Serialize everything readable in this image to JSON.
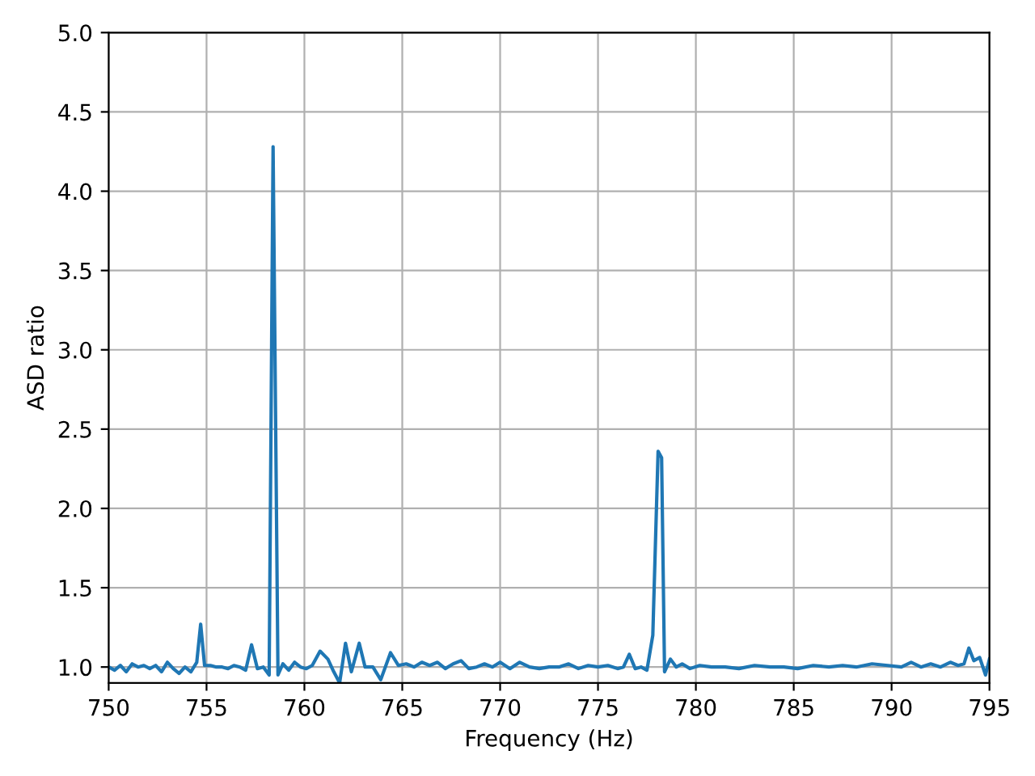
{
  "chart_data": {
    "type": "line",
    "xlabel": "Frequency (Hz)",
    "ylabel": "ASD ratio",
    "xlim": [
      750,
      795
    ],
    "ylim": [
      0.9,
      5.0
    ],
    "xticks": [
      750,
      755,
      760,
      765,
      770,
      775,
      780,
      785,
      790,
      795
    ],
    "yticks": [
      {
        "value": 1.0,
        "label": "1.0"
      },
      {
        "value": 1.5,
        "label": "1.5"
      },
      {
        "value": 2.0,
        "label": "2.0"
      },
      {
        "value": 2.5,
        "label": "2.5"
      },
      {
        "value": 3.0,
        "label": "3.0"
      },
      {
        "value": 3.5,
        "label": "3.5"
      },
      {
        "value": 4.0,
        "label": "4.0"
      },
      {
        "value": 4.5,
        "label": "4.5"
      },
      {
        "value": 5.0,
        "label": "5.0"
      }
    ],
    "grid": true,
    "series": [
      {
        "color": "#1f77b4",
        "x": [
          750.0,
          750.3,
          750.6,
          750.9,
          751.2,
          751.5,
          751.8,
          752.1,
          752.4,
          752.7,
          753.0,
          753.3,
          753.6,
          753.9,
          754.2,
          754.5,
          754.7,
          754.9,
          755.2,
          755.5,
          755.8,
          756.1,
          756.4,
          756.7,
          757.0,
          757.3,
          757.6,
          757.9,
          758.2,
          758.4,
          758.65,
          758.9,
          759.2,
          759.5,
          759.8,
          760.1,
          760.4,
          760.8,
          761.2,
          761.5,
          761.8,
          762.1,
          762.4,
          762.8,
          763.1,
          763.5,
          763.9,
          764.4,
          764.8,
          765.2,
          765.6,
          766.0,
          766.4,
          766.8,
          767.2,
          767.6,
          768.0,
          768.4,
          768.8,
          769.2,
          769.6,
          770.0,
          770.5,
          771.0,
          771.5,
          772.0,
          772.5,
          773.0,
          773.5,
          774.0,
          774.5,
          775.0,
          775.5,
          776.0,
          776.3,
          776.6,
          776.9,
          777.2,
          777.5,
          777.8,
          778.07,
          778.25,
          778.4,
          778.7,
          779.0,
          779.3,
          779.7,
          780.2,
          780.8,
          781.5,
          782.2,
          783.0,
          783.8,
          784.5,
          785.2,
          786.0,
          786.8,
          787.5,
          788.2,
          789.0,
          789.8,
          790.5,
          791.0,
          791.5,
          792.0,
          792.5,
          793.0,
          793.4,
          793.7,
          793.95,
          794.2,
          794.5,
          794.8,
          795.0
        ],
        "values": [
          1.0,
          0.98,
          1.01,
          0.97,
          1.02,
          1.0,
          1.01,
          0.99,
          1.01,
          0.97,
          1.03,
          0.99,
          0.96,
          1.0,
          0.97,
          1.03,
          1.27,
          1.01,
          1.01,
          1.0,
          1.0,
          0.99,
          1.01,
          1.0,
          0.98,
          1.14,
          0.99,
          1.0,
          0.95,
          4.28,
          0.95,
          1.02,
          0.98,
          1.03,
          1.0,
          0.99,
          1.01,
          1.1,
          1.05,
          0.97,
          0.9,
          1.15,
          0.97,
          1.15,
          1.0,
          1.0,
          0.92,
          1.09,
          1.01,
          1.02,
          1.0,
          1.03,
          1.01,
          1.03,
          0.99,
          1.02,
          1.04,
          0.99,
          1.0,
          1.02,
          1.0,
          1.03,
          0.99,
          1.03,
          1.0,
          0.99,
          1.0,
          1.0,
          1.02,
          0.99,
          1.01,
          1.0,
          1.01,
          0.99,
          1.0,
          1.08,
          0.99,
          1.0,
          0.98,
          1.2,
          2.36,
          2.32,
          0.97,
          1.05,
          1.0,
          1.02,
          0.99,
          1.01,
          1.0,
          1.0,
          0.99,
          1.01,
          1.0,
          1.0,
          0.99,
          1.01,
          1.0,
          1.01,
          1.0,
          1.02,
          1.01,
          1.0,
          1.03,
          1.0,
          1.02,
          1.0,
          1.03,
          1.01,
          1.02,
          1.12,
          1.04,
          1.06,
          0.95,
          1.05
        ]
      }
    ]
  }
}
